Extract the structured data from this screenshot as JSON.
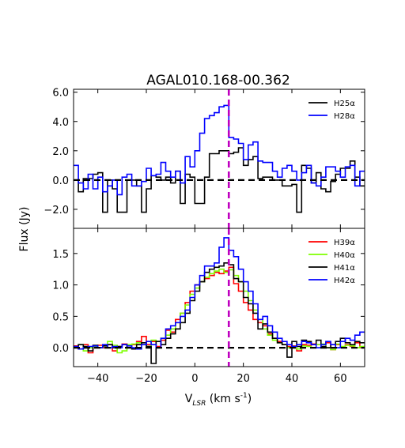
{
  "chart_data": {
    "type": "line",
    "title": "AGAL010.168-00.362",
    "ylabel": "Flux (Jy)",
    "xlabel": "V",
    "xlabel_sub": "LSR",
    "xlabel_unit_open": " (km s",
    "xlabel_unit_sup": "-1",
    "xlabel_unit_close": ")",
    "xlim": [
      -50,
      70
    ],
    "x_ticks": [
      -40,
      -20,
      0,
      20,
      40,
      60
    ],
    "x_tick_labels": [
      "−40",
      "−20",
      "0",
      "20",
      "40",
      "60"
    ],
    "vline_x": 14,
    "vline_color": "#bf00bf",
    "zero_line_style": "dashed",
    "panels": [
      {
        "ylim": [
          -3.3,
          6.2
        ],
        "y_ticks": [
          -2,
          0,
          2,
          4,
          6
        ],
        "y_tick_labels": [
          "−2.0",
          "0.0",
          "2.0",
          "4.0",
          "6.0"
        ],
        "legend_position": "top-right",
        "series": [
          {
            "name": "H25α",
            "color": "#000000",
            "x": [
              -50,
              -48,
              -46,
              -44,
              -42,
              -40,
              -38,
              -36,
              -34,
              -32,
              -30,
              -28,
              -26,
              -24,
              -22,
              -20,
              -18,
              -16,
              -14,
              -12,
              -10,
              -8,
              -6,
              -4,
              -2,
              0,
              2,
              4,
              6,
              8,
              10,
              12,
              14,
              16,
              18,
              20,
              22,
              24,
              26,
              28,
              30,
              32,
              34,
              36,
              38,
              40,
              42,
              44,
              46,
              48,
              50,
              52,
              54,
              56,
              58,
              60,
              62,
              64,
              66,
              68
            ],
            "values": [
              0,
              -0.8,
              0.1,
              0.1,
              0.4,
              0.5,
              -2.2,
              0,
              -0.6,
              -2.2,
              -2.2,
              0,
              0,
              -0.4,
              -2.2,
              -0.6,
              0.3,
              0.2,
              0,
              0.2,
              -0.2,
              0.6,
              -1.6,
              0.4,
              0.2,
              -1.6,
              -1.6,
              0.2,
              1.8,
              1.8,
              2.0,
              2.0,
              1.8,
              1.9,
              2.2,
              1.0,
              1.4,
              1.6,
              0.1,
              0.2,
              0.2,
              0,
              0,
              -0.4,
              -0.4,
              -0.3,
              -2.2,
              1.0,
              0.8,
              -0.2,
              0.5,
              -0.6,
              -0.8,
              -0.1,
              0.4,
              0.8,
              0.8,
              1.3,
              0.2,
              -0.4
            ]
          },
          {
            "name": "H28α",
            "color": "#0000ff",
            "x": [
              -50,
              -48,
              -46,
              -44,
              -42,
              -40,
              -38,
              -36,
              -34,
              -32,
              -30,
              -28,
              -26,
              -24,
              -22,
              -20,
              -18,
              -16,
              -14,
              -12,
              -10,
              -8,
              -6,
              -4,
              -2,
              0,
              2,
              4,
              6,
              8,
              10,
              12,
              14,
              16,
              18,
              20,
              22,
              24,
              26,
              28,
              30,
              32,
              34,
              36,
              38,
              40,
              42,
              44,
              46,
              48,
              50,
              52,
              54,
              56,
              58,
              60,
              62,
              64,
              66,
              68
            ],
            "values": [
              1.0,
              -0.2,
              -0.6,
              0.4,
              -0.6,
              0.2,
              -0.8,
              -0.4,
              0,
              -1.0,
              0.2,
              0.4,
              -0.4,
              -0.4,
              -0.1,
              0.8,
              0.3,
              0.4,
              1.2,
              0.6,
              0.2,
              0.6,
              -0.2,
              1.6,
              0.9,
              2.0,
              3.2,
              4.2,
              4.4,
              4.6,
              5.0,
              5.1,
              2.9,
              2.8,
              2.5,
              1.4,
              2.4,
              2.6,
              1.3,
              1.2,
              1.2,
              0.6,
              0.2,
              0.8,
              1.0,
              0.6,
              0,
              0.5,
              1.0,
              -0.2,
              -0.4,
              0.2,
              0.9,
              0.9,
              0.6,
              0.2,
              0.9,
              1.0,
              -0.4,
              0.6
            ]
          }
        ]
      },
      {
        "ylim": [
          -0.3,
          1.9
        ],
        "y_ticks": [
          0,
          0.5,
          1.0,
          1.5
        ],
        "y_tick_labels": [
          "0.0",
          "0.5",
          "1.0",
          "1.5"
        ],
        "legend_position": "top-right",
        "series": [
          {
            "name": "H39α",
            "color": "#ff0000",
            "x": [
              -50,
              -48,
              -46,
              -44,
              -42,
              -40,
              -38,
              -36,
              -34,
              -32,
              -30,
              -28,
              -26,
              -24,
              -22,
              -20,
              -18,
              -16,
              -14,
              -12,
              -10,
              -8,
              -6,
              -4,
              -2,
              0,
              2,
              4,
              6,
              8,
              10,
              12,
              14,
              16,
              18,
              20,
              22,
              24,
              26,
              28,
              30,
              32,
              34,
              36,
              38,
              40,
              42,
              44,
              46,
              48,
              50,
              52,
              54,
              56,
              58,
              60,
              62,
              64,
              66,
              68
            ],
            "values": [
              0.03,
              -0.02,
              0.05,
              -0.08,
              0.02,
              0.04,
              0.0,
              0.05,
              -0.05,
              0.02,
              0.06,
              0.0,
              0.05,
              0.1,
              0.18,
              0.05,
              0.1,
              0.02,
              0.12,
              0.28,
              0.25,
              0.45,
              0.55,
              0.72,
              0.9,
              1.0,
              1.05,
              1.1,
              1.15,
              1.2,
              1.18,
              1.22,
              1.28,
              1.02,
              0.9,
              0.72,
              0.6,
              0.45,
              0.4,
              0.35,
              0.22,
              0.15,
              0.1,
              0.05,
              0.02,
              0.03,
              -0.05,
              0.05,
              0.04,
              0.06,
              0.05,
              0.0,
              0.08,
              -0.03,
              0.05,
              0.0,
              0.05,
              0.02,
              0.08,
              0.0
            ]
          },
          {
            "name": "H40α",
            "color": "#7fff00",
            "x": [
              -50,
              -48,
              -46,
              -44,
              -42,
              -40,
              -38,
              -36,
              -34,
              -32,
              -30,
              -28,
              -26,
              -24,
              -22,
              -20,
              -18,
              -16,
              -14,
              -12,
              -10,
              -8,
              -6,
              -4,
              -2,
              0,
              2,
              4,
              6,
              8,
              10,
              12,
              14,
              16,
              18,
              20,
              22,
              24,
              26,
              28,
              30,
              32,
              34,
              36,
              38,
              40,
              42,
              44,
              46,
              48,
              50,
              52,
              54,
              56,
              58,
              60,
              62,
              64,
              66,
              68
            ],
            "values": [
              0.0,
              0.05,
              -0.05,
              0.0,
              0.02,
              0.0,
              0.03,
              0.1,
              0.04,
              -0.08,
              -0.05,
              0.05,
              0.06,
              0.08,
              0.05,
              0.02,
              0.12,
              0.1,
              0.15,
              0.2,
              0.3,
              0.4,
              0.55,
              0.68,
              0.85,
              0.95,
              1.05,
              1.12,
              1.18,
              1.22,
              1.25,
              1.2,
              1.24,
              1.15,
              1.05,
              0.9,
              0.75,
              0.6,
              0.45,
              0.3,
              0.2,
              0.12,
              0.08,
              0.05,
              0.0,
              0.02,
              -0.02,
              0.03,
              0.02,
              0.0,
              0.05,
              0.06,
              0.0,
              -0.03,
              0.06,
              0.02,
              0.04,
              0.03,
              0.0,
              0.02
            ]
          },
          {
            "name": "H41α",
            "color": "#000000",
            "x": [
              -50,
              -48,
              -46,
              -44,
              -42,
              -40,
              -38,
              -36,
              -34,
              -32,
              -30,
              -28,
              -26,
              -24,
              -22,
              -20,
              -18,
              -16,
              -14,
              -12,
              -10,
              -8,
              -6,
              -4,
              -2,
              0,
              2,
              4,
              6,
              8,
              10,
              12,
              14,
              16,
              18,
              20,
              22,
              24,
              26,
              28,
              30,
              32,
              34,
              36,
              38,
              40,
              42,
              44,
              46,
              48,
              50,
              52,
              54,
              56,
              58,
              60,
              62,
              64,
              66,
              68
            ],
            "values": [
              0.0,
              0.05,
              0.02,
              -0.05,
              0.04,
              0.0,
              0.03,
              0.05,
              0.0,
              0.02,
              0.05,
              0.0,
              -0.02,
              0.05,
              0.08,
              0.02,
              -0.25,
              0.1,
              0.05,
              0.15,
              0.22,
              0.3,
              0.4,
              0.55,
              0.75,
              0.9,
              1.05,
              1.2,
              1.25,
              1.28,
              1.3,
              1.35,
              1.32,
              1.1,
              1.05,
              0.8,
              0.7,
              0.55,
              0.3,
              0.38,
              0.25,
              0.15,
              0.08,
              0.05,
              -0.15,
              0.1,
              0.02,
              0.12,
              0.1,
              0.05,
              0.12,
              0.02,
              0.0,
              0.05,
              0.1,
              0.15,
              0.08,
              0.05,
              0.1,
              0.08
            ]
          },
          {
            "name": "H42α",
            "color": "#0000ff",
            "x": [
              -50,
              -48,
              -46,
              -44,
              -42,
              -40,
              -38,
              -36,
              -34,
              -32,
              -30,
              -28,
              -26,
              -24,
              -22,
              -20,
              -18,
              -16,
              -14,
              -12,
              -10,
              -8,
              -6,
              -4,
              -2,
              0,
              2,
              4,
              6,
              8,
              10,
              12,
              14,
              16,
              18,
              20,
              22,
              24,
              26,
              28,
              30,
              32,
              34,
              36,
              38,
              40,
              42,
              44,
              46,
              48,
              50,
              52,
              54,
              56,
              58,
              60,
              62,
              64,
              66,
              68
            ],
            "values": [
              0.02,
              -0.02,
              0.0,
              0.02,
              0.03,
              0.0,
              0.05,
              0.0,
              0.02,
              0.0,
              0.05,
              0.03,
              0.0,
              -0.02,
              0.05,
              0.1,
              0.05,
              0.0,
              0.15,
              0.3,
              0.35,
              0.4,
              0.5,
              0.6,
              0.8,
              1.0,
              1.15,
              1.3,
              1.3,
              1.35,
              1.6,
              1.75,
              1.55,
              1.45,
              1.25,
              1.05,
              0.9,
              0.7,
              0.45,
              0.5,
              0.35,
              0.25,
              0.15,
              0.1,
              0.05,
              0.02,
              0.05,
              0.1,
              0.08,
              0.05,
              0.0,
              0.05,
              0.1,
              0.05,
              0.0,
              0.1,
              0.15,
              0.12,
              0.2,
              0.25
            ]
          }
        ]
      }
    ]
  }
}
